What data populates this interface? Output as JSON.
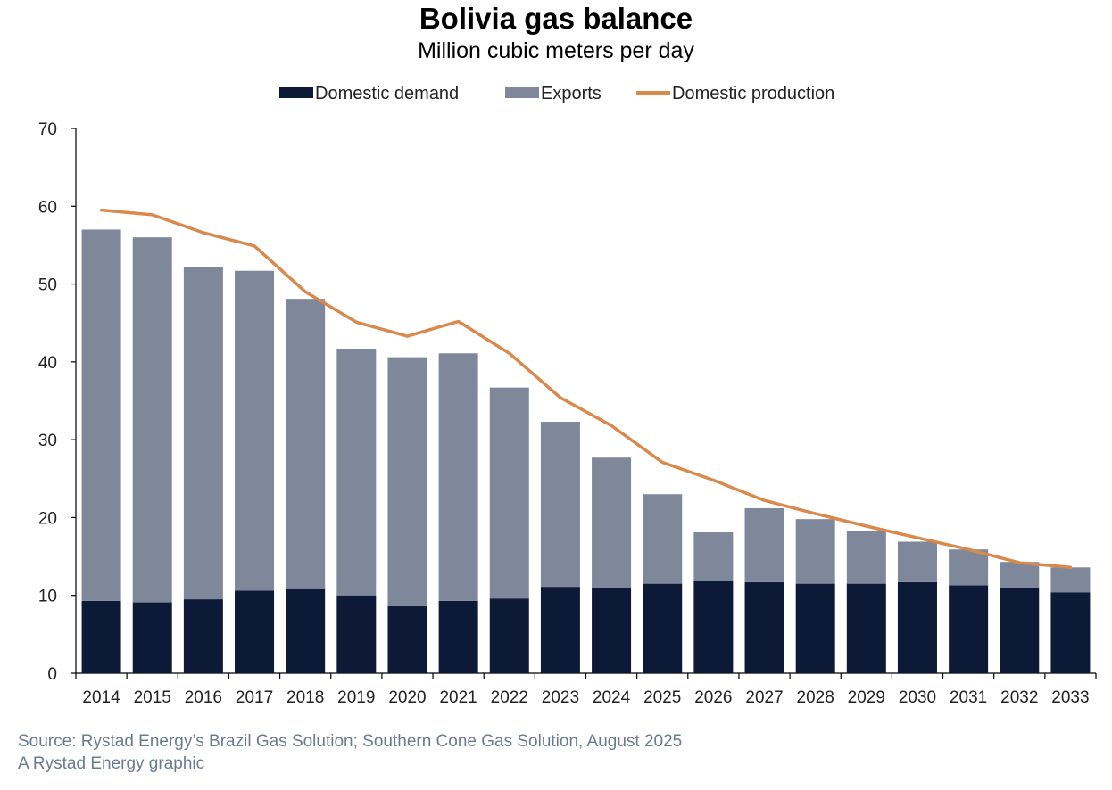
{
  "chart_data": {
    "type": "bar",
    "title": "Bolivia gas balance",
    "subtitle": "Million cubic meters per day",
    "stacked": true,
    "categories": [
      "2014",
      "2015",
      "2016",
      "2017",
      "2018",
      "2019",
      "2020",
      "2021",
      "2022",
      "2023",
      "2024",
      "2025",
      "2026",
      "2027",
      "2028",
      "2029",
      "2030",
      "2031",
      "2032",
      "2033"
    ],
    "series": [
      {
        "name": "Domestic demand",
        "type": "bar",
        "color": "#0c1a38",
        "values": [
          9.3,
          9.1,
          9.5,
          10.6,
          10.8,
          10.0,
          8.6,
          9.3,
          9.6,
          11.1,
          11.0,
          11.5,
          11.8,
          11.7,
          11.5,
          11.5,
          11.7,
          11.3,
          11.0,
          10.4
        ]
      },
      {
        "name": "Exports",
        "type": "bar",
        "color": "#7e889a",
        "values": [
          47.7,
          46.9,
          42.7,
          41.1,
          37.3,
          31.7,
          32.0,
          31.8,
          27.1,
          21.2,
          16.7,
          11.5,
          6.3,
          9.5,
          8.3,
          6.8,
          5.2,
          4.6,
          3.3,
          3.2
        ]
      },
      {
        "name": "Domestic production",
        "type": "line",
        "color": "#d9894c",
        "values": [
          59.5,
          58.9,
          56.6,
          54.9,
          49.0,
          45.1,
          43.3,
          45.2,
          41.1,
          35.4,
          31.8,
          27.1,
          24.8,
          22.2,
          20.5,
          18.9,
          17.4,
          15.9,
          14.2,
          13.6
        ]
      }
    ],
    "xlabel": "",
    "ylabel": "",
    "ylim": [
      0,
      70
    ],
    "yticks": [
      0,
      10,
      20,
      30,
      40,
      50,
      60,
      70
    ],
    "grid": false,
    "legend_position": "top-center"
  },
  "footer": {
    "source": "Source: Rystad Energy’s Brazil Gas Solution; Southern Cone Gas Solution, August 2025",
    "credit": "A Rystad Energy graphic"
  }
}
